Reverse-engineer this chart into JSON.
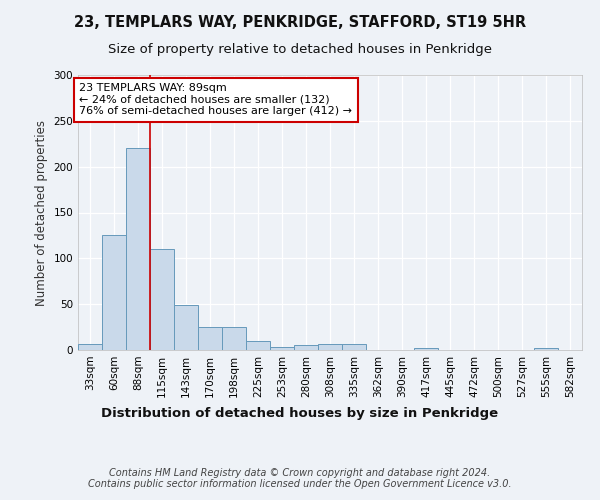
{
  "title1": "23, TEMPLARS WAY, PENKRIDGE, STAFFORD, ST19 5HR",
  "title2": "Size of property relative to detached houses in Penkridge",
  "xlabel": "Distribution of detached houses by size in Penkridge",
  "ylabel": "Number of detached properties",
  "bin_labels": [
    "33sqm",
    "60sqm",
    "88sqm",
    "115sqm",
    "143sqm",
    "170sqm",
    "198sqm",
    "225sqm",
    "253sqm",
    "280sqm",
    "308sqm",
    "335sqm",
    "362sqm",
    "390sqm",
    "417sqm",
    "445sqm",
    "472sqm",
    "500sqm",
    "527sqm",
    "555sqm",
    "582sqm"
  ],
  "bar_heights": [
    7,
    125,
    220,
    110,
    49,
    25,
    25,
    10,
    3,
    5,
    7,
    7,
    0,
    0,
    2,
    0,
    0,
    0,
    0,
    2,
    0
  ],
  "bar_color": "#c9d9ea",
  "bar_edge_color": "#6699bb",
  "highlight_line_bin": 2,
  "highlight_box_line1": "23 TEMPLARS WAY: 89sqm",
  "highlight_box_line2": "← 24% of detached houses are smaller (132)",
  "highlight_box_line3": "76% of semi-detached houses are larger (412) →",
  "annotation_box_facecolor": "#ffffff",
  "annotation_box_edgecolor": "#cc0000",
  "vline_color": "#cc0000",
  "ylim": [
    0,
    300
  ],
  "yticks": [
    0,
    50,
    100,
    150,
    200,
    250,
    300
  ],
  "bg_color": "#eef2f7",
  "footer_line1": "Contains HM Land Registry data © Crown copyright and database right 2024.",
  "footer_line2": "Contains public sector information licensed under the Open Government Licence v3.0.",
  "title1_fontsize": 10.5,
  "title2_fontsize": 9.5,
  "xlabel_fontsize": 9.5,
  "ylabel_fontsize": 8.5,
  "tick_fontsize": 7.5,
  "footer_fontsize": 7,
  "annot_fontsize": 8
}
